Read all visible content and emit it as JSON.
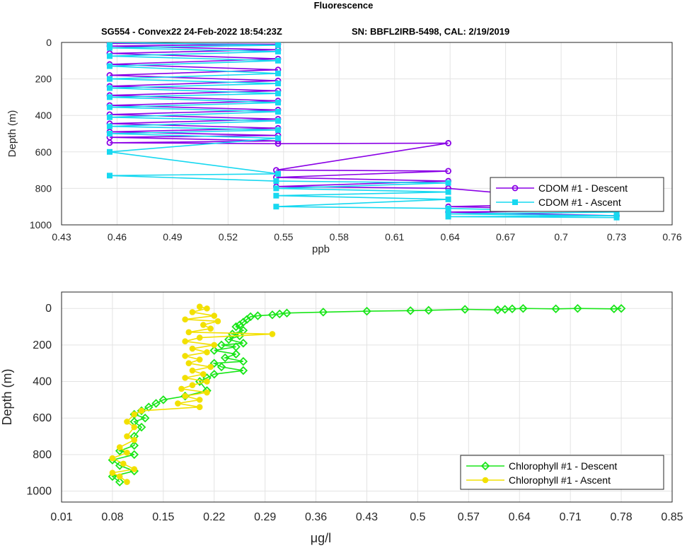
{
  "figure": {
    "title": "Fluorescence",
    "subtitle_left": "SG554 - Convex22 24-Feb-2022 18:54:23Z",
    "subtitle_right": "SN: BBFL2IRB-5498, CAL: 2/19/2019"
  },
  "chart_data": [
    {
      "type": "line",
      "xlabel": "ppb",
      "ylabel": "Depth (m)",
      "xlim": [
        0.43,
        0.76
      ],
      "ylim": [
        0,
        1000
      ],
      "y_reversed": true,
      "grid": true,
      "xticks": [
        "0.43",
        "0.46",
        "0.49",
        "0.52",
        "0.55",
        "0.58",
        "0.61",
        "0.64",
        "0.67",
        "0.7",
        "0.73",
        "0.76"
      ],
      "yticks": [
        "0",
        "200",
        "400",
        "600",
        "800",
        "1000"
      ],
      "legend_position": "bottom-right",
      "series": [
        {
          "name": "CDOM #1 - Descent",
          "color": "#8a00e6",
          "marker": "circle",
          "x": [
            0.456,
            0.547,
            0.456,
            0.547,
            0.456,
            0.547,
            0.456,
            0.547,
            0.456,
            0.547,
            0.456,
            0.547,
            0.456,
            0.547,
            0.456,
            0.547,
            0.456,
            0.547,
            0.456,
            0.547,
            0.456,
            0.547,
            0.456,
            0.547,
            0.456,
            0.547,
            0.639,
            0.546,
            0.639,
            0.546,
            0.639,
            0.546,
            0.639,
            0.73,
            0.639,
            0.73,
            0.639,
            0.73
          ],
          "y": [
            5,
            10,
            20,
            40,
            60,
            90,
            120,
            150,
            180,
            210,
            240,
            265,
            290,
            320,
            345,
            370,
            395,
            420,
            445,
            470,
            490,
            510,
            520,
            540,
            550,
            555,
            552,
            700,
            705,
            740,
            760,
            790,
            800,
            880,
            900,
            920,
            930,
            950
          ]
        },
        {
          "name": "CDOM #1 - Ascent",
          "color": "#17d8f0",
          "marker": "square",
          "x": [
            0.456,
            0.547,
            0.456,
            0.547,
            0.456,
            0.547,
            0.456,
            0.547,
            0.456,
            0.547,
            0.456,
            0.547,
            0.456,
            0.547,
            0.456,
            0.547,
            0.456,
            0.547,
            0.456,
            0.547,
            0.456,
            0.547,
            0.456,
            0.547,
            0.456,
            0.546,
            0.639,
            0.546,
            0.639,
            0.546,
            0.639,
            0.546,
            0.639,
            0.73,
            0.639,
            0.73,
            0.639,
            0.73
          ],
          "y": [
            0,
            15,
            30,
            50,
            75,
            100,
            130,
            170,
            200,
            225,
            250,
            280,
            300,
            330,
            355,
            380,
            410,
            430,
            460,
            480,
            500,
            525,
            600,
            720,
            730,
            760,
            770,
            800,
            820,
            840,
            860,
            900,
            910,
            930,
            940,
            950,
            955,
            960
          ]
        }
      ]
    },
    {
      "type": "line",
      "xlabel": "μg/l",
      "ylabel": "Depth (m)",
      "xlim": [
        0.01,
        0.85
      ],
      "ylim": [
        -90,
        1060
      ],
      "y_reversed": true,
      "grid": true,
      "xticks": [
        "0.01",
        "0.08",
        "0.15",
        "0.22",
        "0.29",
        "0.36",
        "0.43",
        "0.5",
        "0.57",
        "0.64",
        "0.71",
        "0.78",
        "0.85"
      ],
      "yticks": [
        "0",
        "200",
        "400",
        "600",
        "800",
        "1000"
      ],
      "legend_position": "bottom-right",
      "series": [
        {
          "name": "Chlorophyll #1 - Descent",
          "color": "#19e619",
          "marker": "diamond",
          "x": [
            0.78,
            0.77,
            0.72,
            0.69,
            0.645,
            0.63,
            0.62,
            0.61,
            0.565,
            0.515,
            0.49,
            0.43,
            0.37,
            0.32,
            0.31,
            0.3,
            0.28,
            0.27,
            0.265,
            0.26,
            0.255,
            0.25,
            0.26,
            0.245,
            0.255,
            0.24,
            0.26,
            0.23,
            0.25,
            0.22,
            0.25,
            0.235,
            0.26,
            0.22,
            0.23,
            0.26,
            0.22,
            0.21,
            0.2,
            0.21,
            0.18,
            0.15,
            0.14,
            0.13,
            0.12,
            0.11,
            0.125,
            0.11,
            0.12,
            0.11,
            0.11,
            0.09,
            0.11,
            0.08,
            0.09,
            0.11,
            0.08,
            0.09
          ],
          "y": [
            0,
            2,
            0,
            2,
            0,
            2,
            5,
            8,
            5,
            10,
            12,
            15,
            20,
            25,
            30,
            35,
            40,
            45,
            60,
            75,
            90,
            100,
            120,
            140,
            150,
            170,
            190,
            200,
            210,
            230,
            250,
            270,
            290,
            300,
            320,
            340,
            360,
            380,
            400,
            450,
            480,
            500,
            520,
            540,
            560,
            580,
            600,
            620,
            650,
            700,
            750,
            780,
            800,
            830,
            860,
            890,
            920,
            950
          ]
        },
        {
          "name": "Chlorophyll #1 - Ascent",
          "color": "#f2e000",
          "marker": "dot",
          "x": [
            0.2,
            0.21,
            0.19,
            0.22,
            0.18,
            0.225,
            0.205,
            0.215,
            0.185,
            0.3,
            0.2,
            0.18,
            0.22,
            0.19,
            0.21,
            0.18,
            0.2,
            0.185,
            0.215,
            0.19,
            0.205,
            0.18,
            0.21,
            0.19,
            0.175,
            0.21,
            0.18,
            0.2,
            0.17,
            0.2,
            0.12,
            0.11,
            0.1,
            0.11,
            0.1,
            0.11,
            0.09,
            0.1,
            0.08,
            0.095,
            0.11,
            0.08,
            0.09,
            0.1
          ],
          "y": [
            -10,
            0,
            20,
            40,
            60,
            70,
            90,
            110,
            130,
            140,
            160,
            180,
            200,
            220,
            240,
            260,
            280,
            300,
            320,
            340,
            360,
            380,
            400,
            420,
            440,
            460,
            480,
            500,
            520,
            540,
            560,
            580,
            620,
            650,
            700,
            720,
            760,
            790,
            820,
            850,
            880,
            900,
            920,
            950
          ]
        }
      ]
    }
  ]
}
